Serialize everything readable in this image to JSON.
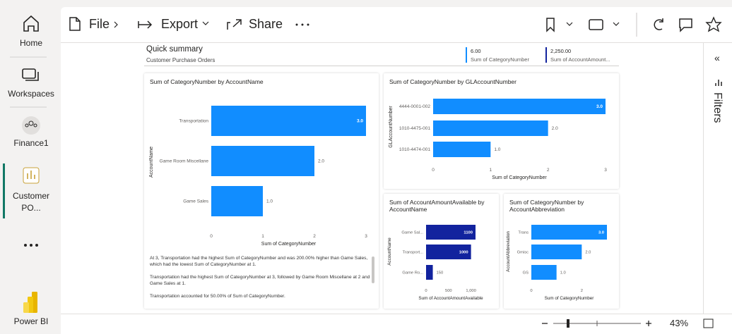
{
  "nav": {
    "items": [
      "Home",
      "Workspaces",
      "Finance1",
      "Customer PO...",
      "Power BI"
    ]
  },
  "toolbar": {
    "file": "File",
    "export": "Export",
    "share": "Share"
  },
  "summary": {
    "title": "Quick summary",
    "subtitle": "Customer Purchase Orders",
    "cards": [
      {
        "value": "6.00",
        "label": "Sum of CategoryNumber"
      },
      {
        "value": "2,250.00",
        "label": "Sum of AccountAmount..."
      }
    ]
  },
  "chart_data": [
    {
      "type": "bar",
      "title": "Sum of CategoryNumber by AccountName",
      "categories": [
        "Transportation",
        "Game Room Miscellane",
        "Game Sales"
      ],
      "values": [
        3,
        2,
        1
      ],
      "value_labels": [
        "3.0",
        "2.0",
        "1.0"
      ],
      "xlim": [
        0,
        3
      ],
      "xticks": [
        0,
        1,
        2,
        3
      ],
      "x_label": "Sum of CategoryNumber",
      "y_label": "AccountName",
      "color": "#118dff"
    },
    {
      "type": "bar",
      "title": "Sum of CategoryNumber by GLAccountNumber",
      "categories": [
        "4444-0001-002",
        "1010-4475-001",
        "1010-4474-001"
      ],
      "values": [
        3,
        2,
        1
      ],
      "value_labels": [
        "3.0",
        "2.0",
        "1.0"
      ],
      "xlim": [
        0,
        3
      ],
      "xticks": [
        0,
        1,
        2,
        3
      ],
      "x_label": "Sum of CategoryNumber",
      "y_label": "GLAccountNumber",
      "color": "#118dff"
    },
    {
      "type": "bar",
      "title": "Sum of AccountAmountAvailable by AccountName",
      "categories": [
        "Game Sal...",
        "Transport...",
        "Game Ro..."
      ],
      "values": [
        1100,
        1000,
        150
      ],
      "xlim": [
        0,
        1100
      ],
      "xticks": [
        0,
        500,
        {
          "value": 1000,
          "label": "1,000"
        }
      ],
      "x_label": "Sum of AccountAmountAvailable",
      "y_label": "AccountName",
      "color": "#12239e"
    },
    {
      "type": "bar",
      "title": "Sum of CategoryNumber by AccountAbbreviation",
      "categories": [
        "Trans",
        "Gmisc",
        "GS"
      ],
      "values": [
        3,
        2,
        1
      ],
      "value_labels": [
        "3.0",
        "2.0",
        "1.0"
      ],
      "xlim": [
        0,
        3
      ],
      "xticks": [
        0,
        2
      ],
      "x_label": "Sum of CategoryNumber",
      "y_label": "AccountAbbreviation",
      "color": "#118dff"
    }
  ],
  "narrative": {
    "paragraphs": [
      "At 3, Transportation had the highest Sum of CategoryNumber and was 200.00% higher than Game Sales, which had the lowest Sum of CategoryNumber at 1.",
      "Transportation had the highest Sum of CategoryNumber at 3, followed by Game Room Miscellane at 2 and Game Sales at 1.",
      "Transportation accounted for 50.00% of Sum of CategoryNumber."
    ]
  },
  "filters": {
    "title": "Filters"
  },
  "zoom": {
    "level": "43%"
  }
}
